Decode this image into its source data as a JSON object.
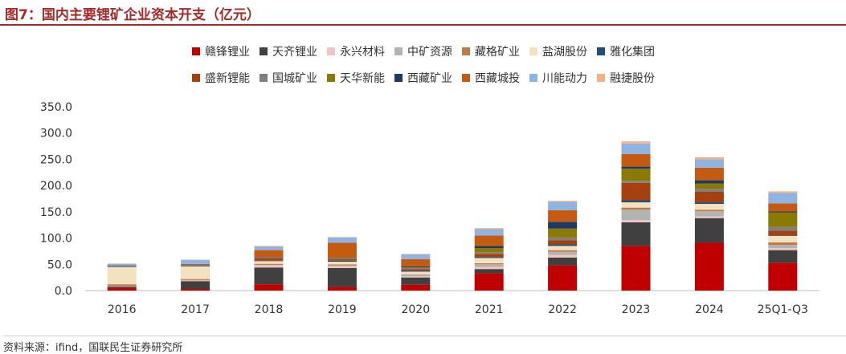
{
  "header": {
    "title": "图7：国内主要锂矿企业资本开支（亿元）"
  },
  "footer": {
    "source": "资料来源：ifind，国联民生证券研究所"
  },
  "chart_data": {
    "type": "bar",
    "stacked": true,
    "categories": [
      "2016",
      "2017",
      "2018",
      "2019",
      "2020",
      "2021",
      "2022",
      "2023",
      "2024",
      "25Q1-Q3"
    ],
    "ylim": [
      0,
      350
    ],
    "yticks": [
      0,
      50,
      100,
      150,
      200,
      250,
      300,
      350
    ],
    "ytick_labels": [
      "0.0",
      "50.0",
      "100.0",
      "150.0",
      "200.0",
      "250.0",
      "300.0",
      "350.0"
    ],
    "legend_position": "top-center",
    "series": [
      {
        "name": "赣锋锂业",
        "color": "#c00000",
        "values": [
          5,
          3,
          12,
          7,
          11,
          33,
          48,
          85,
          91,
          53
        ]
      },
      {
        "name": "天齐锂业",
        "color": "#404040",
        "values": [
          3,
          15,
          32,
          36,
          14,
          8,
          15,
          45,
          47,
          24
        ]
      },
      {
        "name": "永兴材料",
        "color": "#f2c4c4",
        "values": [
          0.5,
          1,
          4,
          3,
          2,
          4,
          5,
          4,
          3,
          4
        ]
      },
      {
        "name": "中矿资源",
        "color": "#b3b3b3",
        "values": [
          0.5,
          1,
          1,
          2,
          3,
          5,
          6,
          20,
          10,
          6
        ]
      },
      {
        "name": "藏格矿业",
        "color": "#c07a45",
        "values": [
          3,
          2,
          2,
          2,
          1,
          2,
          3,
          4,
          3,
          5
        ]
      },
      {
        "name": "盐湖股份",
        "color": "#f2e2c0",
        "values": [
          33,
          24,
          5,
          5,
          5,
          10,
          8,
          10,
          11,
          12
        ]
      },
      {
        "name": "雅化集团",
        "color": "#1f4e79",
        "values": [
          1,
          1,
          1,
          2,
          2,
          2,
          3,
          4,
          3,
          1
        ]
      },
      {
        "name": "盛新锂能",
        "color": "#a5400f",
        "values": [
          0.5,
          1,
          4,
          3,
          3,
          6,
          8,
          33,
          20,
          9
        ]
      },
      {
        "name": "国城矿业",
        "color": "#7f7f7f",
        "values": [
          1,
          1,
          1,
          1,
          2,
          3,
          5,
          4,
          6,
          7
        ]
      },
      {
        "name": "天华新能",
        "color": "#8a7a00",
        "values": [
          0,
          0,
          0,
          1,
          1,
          8,
          17,
          23,
          10,
          28
        ]
      },
      {
        "name": "西藏矿业",
        "color": "#1f3864",
        "values": [
          0.5,
          0.5,
          1,
          1,
          2,
          4,
          13,
          4,
          6,
          2
        ]
      },
      {
        "name": "西藏城投",
        "color": "#c55a11",
        "values": [
          0,
          1,
          14,
          28,
          14,
          20,
          22,
          24,
          24,
          15
        ]
      },
      {
        "name": "川能动力",
        "color": "#8eb4e3",
        "values": [
          3,
          8,
          7,
          10,
          9,
          12,
          16,
          20,
          16,
          20
        ]
      },
      {
        "name": "融捷股份",
        "color": "#f4b183",
        "values": [
          0.5,
          0.5,
          1,
          1,
          1,
          2,
          2,
          4,
          4,
          3
        ]
      }
    ]
  }
}
